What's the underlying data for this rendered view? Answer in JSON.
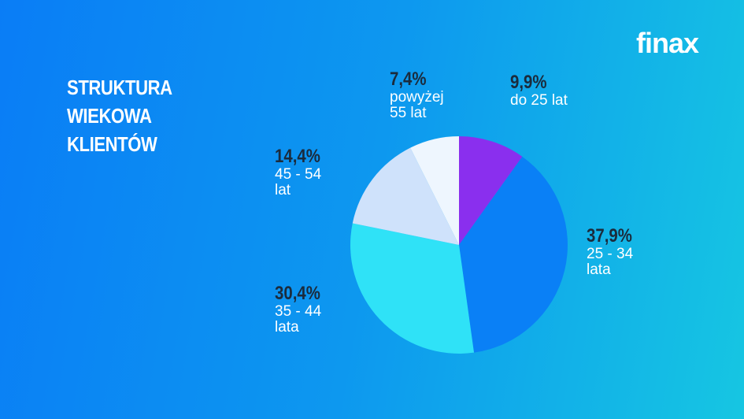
{
  "logo": "finax",
  "chart_data": {
    "type": "pie",
    "title": "STRUKTURA WIEKOWA KLIENTÓW",
    "categories": [
      "do 25 lat",
      "25 - 34 lata",
      "35 - 44 lata",
      "45 - 54 lat",
      "powyżej 55 lat"
    ],
    "values": [
      9.9,
      37.9,
      30.4,
      14.4,
      7.4
    ],
    "value_labels": [
      "9,9%",
      "37,9%",
      "30,4%",
      "14,4%",
      "7,4%"
    ],
    "colors": [
      "#8a2fee",
      "#0a80f6",
      "#2fe2f7",
      "#cfe2fb",
      "#eef6fe"
    ]
  }
}
